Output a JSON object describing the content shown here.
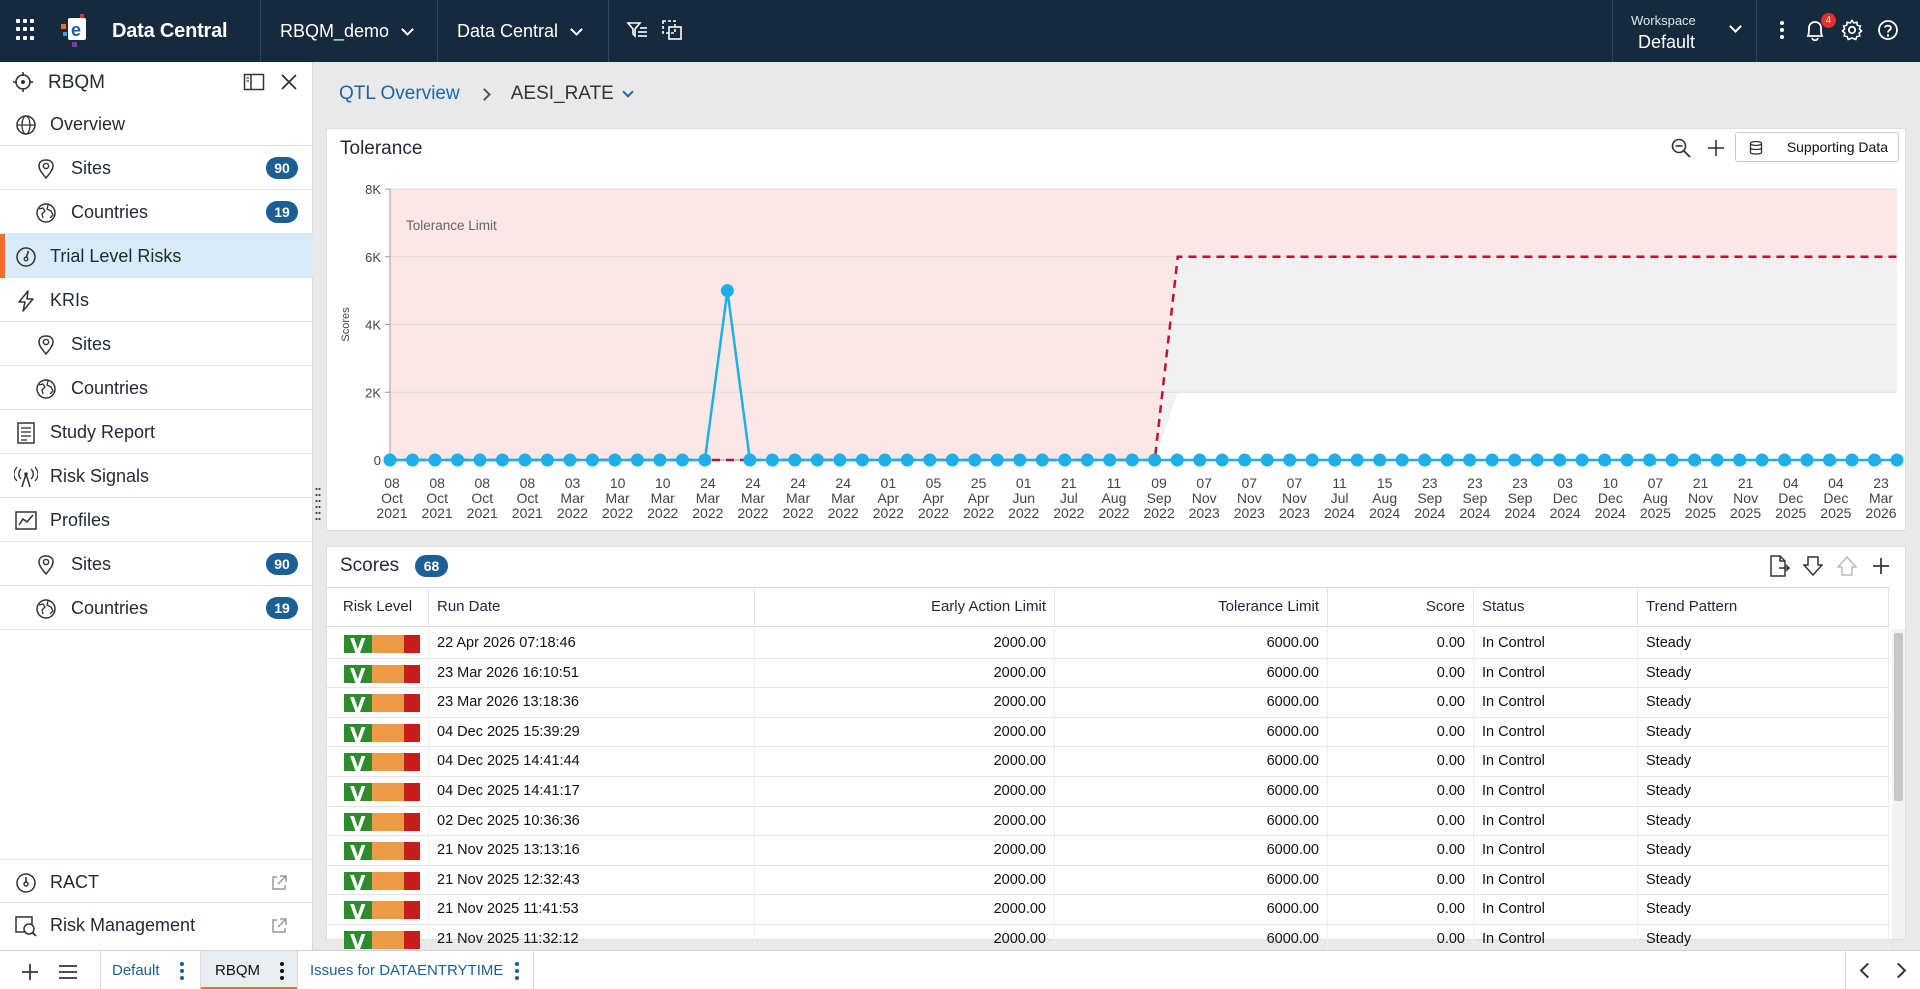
{
  "topbar": {
    "app_name": "Data Central",
    "study_selector": "RBQM_demo",
    "module_selector": "Data Central",
    "workspace_label": "Workspace",
    "workspace_value": "Default",
    "notifications_count": "4"
  },
  "sidebar": {
    "title": "RBQM",
    "items": [
      {
        "label": "Overview",
        "icon": "globe-icon",
        "level": 0
      },
      {
        "label": "Sites",
        "icon": "location-pin-icon",
        "level": 1,
        "count": "90"
      },
      {
        "label": "Countries",
        "icon": "world-map-icon",
        "level": 1,
        "count": "19"
      },
      {
        "label": "Trial Level Risks",
        "icon": "gauge-icon",
        "level": 0,
        "active": true
      },
      {
        "label": "KRIs",
        "icon": "lightning-icon",
        "level": 0
      },
      {
        "label": "Sites",
        "icon": "location-pin-icon",
        "level": 1
      },
      {
        "label": "Countries",
        "icon": "world-map-icon",
        "level": 1
      },
      {
        "label": "Study Report",
        "icon": "report-icon",
        "level": 0
      },
      {
        "label": "Risk Signals",
        "icon": "signal-tower-icon",
        "level": 0
      },
      {
        "label": "Profiles",
        "icon": "line-chart-icon",
        "level": 0
      },
      {
        "label": "Sites",
        "icon": "location-pin-icon",
        "level": 1,
        "count": "90"
      },
      {
        "label": "Countries",
        "icon": "world-map-icon",
        "level": 1,
        "count": "19"
      }
    ],
    "footer_items": [
      {
        "label": "RACT",
        "icon": "gauge-icon"
      },
      {
        "label": "Risk Management",
        "icon": "risk-management-icon"
      }
    ]
  },
  "breadcrumb": {
    "parent": "QTL Overview",
    "current": "AESI_RATE"
  },
  "tolerance_panel": {
    "title": "Tolerance",
    "supporting_data_label": "Supporting Data"
  },
  "chart_data": {
    "type": "line",
    "title": "",
    "ylabel": "Scores",
    "ylim": [
      0,
      8000
    ],
    "yticks": [
      "0",
      "2K",
      "4K",
      "6K",
      "8K"
    ],
    "band_label": "Tolerance Limit",
    "x_tick_labels": [
      [
        "08",
        "Oct",
        "2021"
      ],
      [
        "08",
        "Oct",
        "2021"
      ],
      [
        "08",
        "Oct",
        "2021"
      ],
      [
        "08",
        "Oct",
        "2021"
      ],
      [
        "03",
        "Mar",
        "2022"
      ],
      [
        "10",
        "Mar",
        "2022"
      ],
      [
        "10",
        "Mar",
        "2022"
      ],
      [
        "24",
        "Mar",
        "2022"
      ],
      [
        "24",
        "Mar",
        "2022"
      ],
      [
        "24",
        "Mar",
        "2022"
      ],
      [
        "24",
        "Mar",
        "2022"
      ],
      [
        "01",
        "Apr",
        "2022"
      ],
      [
        "05",
        "Apr",
        "2022"
      ],
      [
        "25",
        "Apr",
        "2022"
      ],
      [
        "01",
        "Jun",
        "2022"
      ],
      [
        "21",
        "Jul",
        "2022"
      ],
      [
        "11",
        "Aug",
        "2022"
      ],
      [
        "09",
        "Sep",
        "2022"
      ],
      [
        "07",
        "Nov",
        "2023"
      ],
      [
        "07",
        "Nov",
        "2023"
      ],
      [
        "07",
        "Nov",
        "2023"
      ],
      [
        "11",
        "Jul",
        "2024"
      ],
      [
        "15",
        "Aug",
        "2024"
      ],
      [
        "23",
        "Sep",
        "2024"
      ],
      [
        "23",
        "Sep",
        "2024"
      ],
      [
        "23",
        "Sep",
        "2024"
      ],
      [
        "03",
        "Dec",
        "2024"
      ],
      [
        "10",
        "Dec",
        "2024"
      ],
      [
        "07",
        "Aug",
        "2025"
      ],
      [
        "21",
        "Nov",
        "2025"
      ],
      [
        "21",
        "Nov",
        "2025"
      ],
      [
        "04",
        "Dec",
        "2025"
      ],
      [
        "04",
        "Dec",
        "2025"
      ],
      [
        "23",
        "Mar",
        "2026"
      ]
    ],
    "series": [
      {
        "name": "Score",
        "color": "#1eaee8",
        "spike_index": 15,
        "spike_value": 5000,
        "point_count": 68,
        "baseline": 0
      },
      {
        "name": "Tolerance Limit",
        "color": "#c8102e",
        "value_before": 0,
        "value_after": 6000,
        "step_index": 34
      }
    ],
    "regions": {
      "tolerance_fill": "#fbe8e6",
      "early_action_fill": "#f1f1f1",
      "early_action_limit_after": 2000
    }
  },
  "scores_panel": {
    "title": "Scores",
    "count": "68",
    "columns": [
      "Risk Level",
      "Run Date",
      "Early Action Limit",
      "Tolerance Limit",
      "Score",
      "Status",
      "Trend Pattern"
    ],
    "rows": [
      {
        "run_date": "22 Apr 2026 07:18:46",
        "eal": "2000.00",
        "tl": "6000.00",
        "score": "0.00",
        "status": "In Control",
        "trend": "Steady"
      },
      {
        "run_date": "23 Mar 2026 16:10:51",
        "eal": "2000.00",
        "tl": "6000.00",
        "score": "0.00",
        "status": "In Control",
        "trend": "Steady"
      },
      {
        "run_date": "23 Mar 2026 13:18:36",
        "eal": "2000.00",
        "tl": "6000.00",
        "score": "0.00",
        "status": "In Control",
        "trend": "Steady"
      },
      {
        "run_date": "04 Dec 2025 15:39:29",
        "eal": "2000.00",
        "tl": "6000.00",
        "score": "0.00",
        "status": "In Control",
        "trend": "Steady"
      },
      {
        "run_date": "04 Dec 2025 14:41:44",
        "eal": "2000.00",
        "tl": "6000.00",
        "score": "0.00",
        "status": "In Control",
        "trend": "Steady"
      },
      {
        "run_date": "04 Dec 2025 14:41:17",
        "eal": "2000.00",
        "tl": "6000.00",
        "score": "0.00",
        "status": "In Control",
        "trend": "Steady"
      },
      {
        "run_date": "02 Dec 2025 10:36:36",
        "eal": "2000.00",
        "tl": "6000.00",
        "score": "0.00",
        "status": "In Control",
        "trend": "Steady"
      },
      {
        "run_date": "21 Nov 2025 13:13:16",
        "eal": "2000.00",
        "tl": "6000.00",
        "score": "0.00",
        "status": "In Control",
        "trend": "Steady"
      },
      {
        "run_date": "21 Nov 2025 12:32:43",
        "eal": "2000.00",
        "tl": "6000.00",
        "score": "0.00",
        "status": "In Control",
        "trend": "Steady"
      },
      {
        "run_date": "21 Nov 2025 11:41:53",
        "eal": "2000.00",
        "tl": "6000.00",
        "score": "0.00",
        "status": "In Control",
        "trend": "Steady"
      },
      {
        "run_date": "21 Nov 2025 11:32:12",
        "eal": "2000.00",
        "tl": "6000.00",
        "score": "0.00",
        "status": "In Control",
        "trend": "Steady"
      }
    ]
  },
  "bottom_tabs": [
    {
      "label": "Default",
      "active": false
    },
    {
      "label": "RBQM",
      "active": true
    },
    {
      "label": "Issues for DATAENTRYTIME",
      "active": false
    }
  ],
  "colors": {
    "topbar_bg": "#162a3d",
    "accent_orange": "#e8702a",
    "badge_blue": "#1c5f95",
    "link_blue": "#1c67a8"
  }
}
